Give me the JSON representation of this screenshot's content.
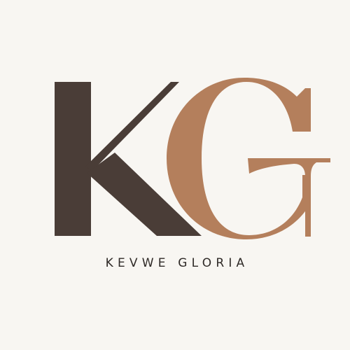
{
  "logo": {
    "monogram_label": "KG",
    "name": "KEVWE GLORIA"
  },
  "colors": {
    "background": "#f8f6f2",
    "k_letter": "#4a3d37",
    "g_letter": "#b47f5c",
    "text": "#2f2a27"
  }
}
